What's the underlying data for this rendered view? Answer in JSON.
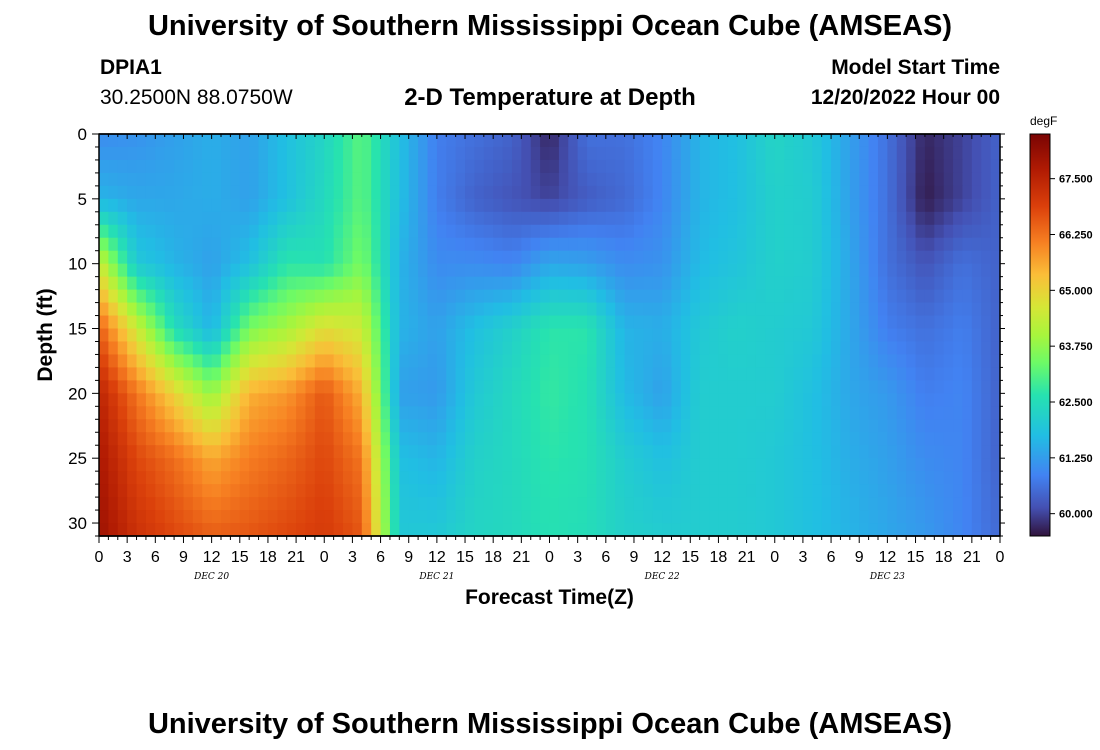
{
  "header": {
    "title": "University of Southern Mississippi Ocean Cube (AMSEAS)",
    "station_id": "DPIA1",
    "coords": "30.2500N  88.0750W",
    "subtitle": "2-D Temperature at Depth",
    "start_label": "Model Start Time",
    "start_value": "12/20/2022 Hour 00"
  },
  "footer": {
    "title": "University of Southern Mississippi Ocean Cube (AMSEAS)"
  },
  "chart_data": {
    "type": "heatmap",
    "title": "2-D Temperature at Depth",
    "xlabel": "Forecast Time(Z)",
    "ylabel": "Depth (ft)",
    "units": "degF",
    "x_range_hours": [
      0,
      96
    ],
    "x_ticks": [
      "0",
      "3",
      "6",
      "9",
      "12",
      "15",
      "18",
      "21",
      "0",
      "3",
      "6",
      "9",
      "12",
      "15",
      "18",
      "21",
      "0",
      "3",
      "6",
      "9",
      "12",
      "15",
      "18",
      "21",
      "0",
      "3",
      "6",
      "9",
      "12",
      "15",
      "18",
      "21",
      "0"
    ],
    "day_labels": [
      {
        "label": "DEC 20",
        "hour": 12
      },
      {
        "label": "DEC 21",
        "hour": 36
      },
      {
        "label": "DEC 22",
        "hour": 60
      },
      {
        "label": "DEC 23",
        "hour": 84
      }
    ],
    "ylim": [
      0,
      31
    ],
    "y_ticks": [
      0,
      5,
      10,
      15,
      20,
      25,
      30
    ],
    "colorbar": {
      "min": 59.5,
      "max": 68.5,
      "ticks": [
        "67.500",
        "66.250",
        "65.000",
        "63.750",
        "62.500",
        "61.250",
        "60.000"
      ],
      "tick_values": [
        67.5,
        66.25,
        65.0,
        63.75,
        62.5,
        61.25,
        60.0
      ]
    },
    "depths_ft": [
      0,
      5,
      10,
      15,
      20,
      25,
      31
    ],
    "hours": [
      0,
      4,
      8,
      12,
      16,
      20,
      24,
      28,
      32,
      36,
      40,
      44,
      48,
      52,
      56,
      60,
      64,
      68,
      72,
      76,
      80,
      84,
      88,
      92,
      96
    ],
    "values": [
      [
        61.0,
        61.1,
        61.3,
        61.5,
        61.3,
        61.8,
        62.3,
        63.2,
        61.8,
        60.8,
        60.6,
        60.4,
        59.7,
        60.6,
        60.6,
        60.9,
        61.6,
        61.8,
        62.3,
        62.0,
        61.3,
        60.6,
        59.7,
        60.0,
        60.4
      ],
      [
        61.6,
        61.4,
        61.4,
        61.5,
        61.3,
        61.8,
        62.4,
        63.2,
        61.8,
        60.8,
        60.4,
        60.2,
        60.0,
        60.3,
        60.5,
        60.9,
        61.6,
        61.8,
        62.2,
        62.1,
        61.3,
        60.6,
        59.6,
        60.0,
        60.4
      ],
      [
        64.5,
        62.0,
        61.6,
        61.3,
        61.8,
        62.7,
        62.6,
        63.5,
        61.6,
        61.0,
        61.0,
        60.9,
        61.4,
        61.3,
        61.0,
        61.1,
        61.7,
        61.9,
        62.2,
        62.1,
        61.4,
        60.6,
        60.2,
        60.6,
        60.4
      ],
      [
        66.5,
        64.5,
        62.5,
        61.6,
        63.5,
        64.0,
        64.8,
        64.5,
        61.6,
        61.3,
        61.8,
        62.2,
        62.7,
        62.7,
        61.6,
        61.5,
        62.0,
        62.2,
        62.1,
        62.0,
        61.4,
        60.8,
        60.6,
        60.8,
        60.4
      ],
      [
        67.5,
        66.2,
        65.0,
        63.8,
        65.5,
        65.8,
        66.6,
        65.5,
        61.3,
        61.2,
        62.0,
        62.4,
        62.8,
        62.6,
        61.7,
        61.3,
        62.1,
        62.1,
        62.1,
        61.8,
        61.4,
        61.2,
        60.8,
        60.9,
        60.4
      ],
      [
        67.8,
        66.8,
        66.3,
        65.6,
        66.1,
        66.4,
        66.8,
        66.2,
        61.8,
        61.6,
        62.2,
        62.4,
        62.7,
        62.6,
        62.1,
        61.8,
        62.1,
        62.1,
        62.0,
        61.8,
        61.5,
        61.3,
        61.0,
        60.9,
        60.4
      ],
      [
        68.0,
        67.2,
        66.8,
        66.5,
        66.6,
        66.8,
        67.0,
        66.6,
        62.0,
        62.0,
        62.3,
        62.4,
        62.6,
        62.5,
        62.2,
        62.1,
        62.1,
        62.1,
        62.0,
        61.8,
        61.6,
        61.4,
        61.2,
        60.9,
        60.5
      ]
    ]
  }
}
